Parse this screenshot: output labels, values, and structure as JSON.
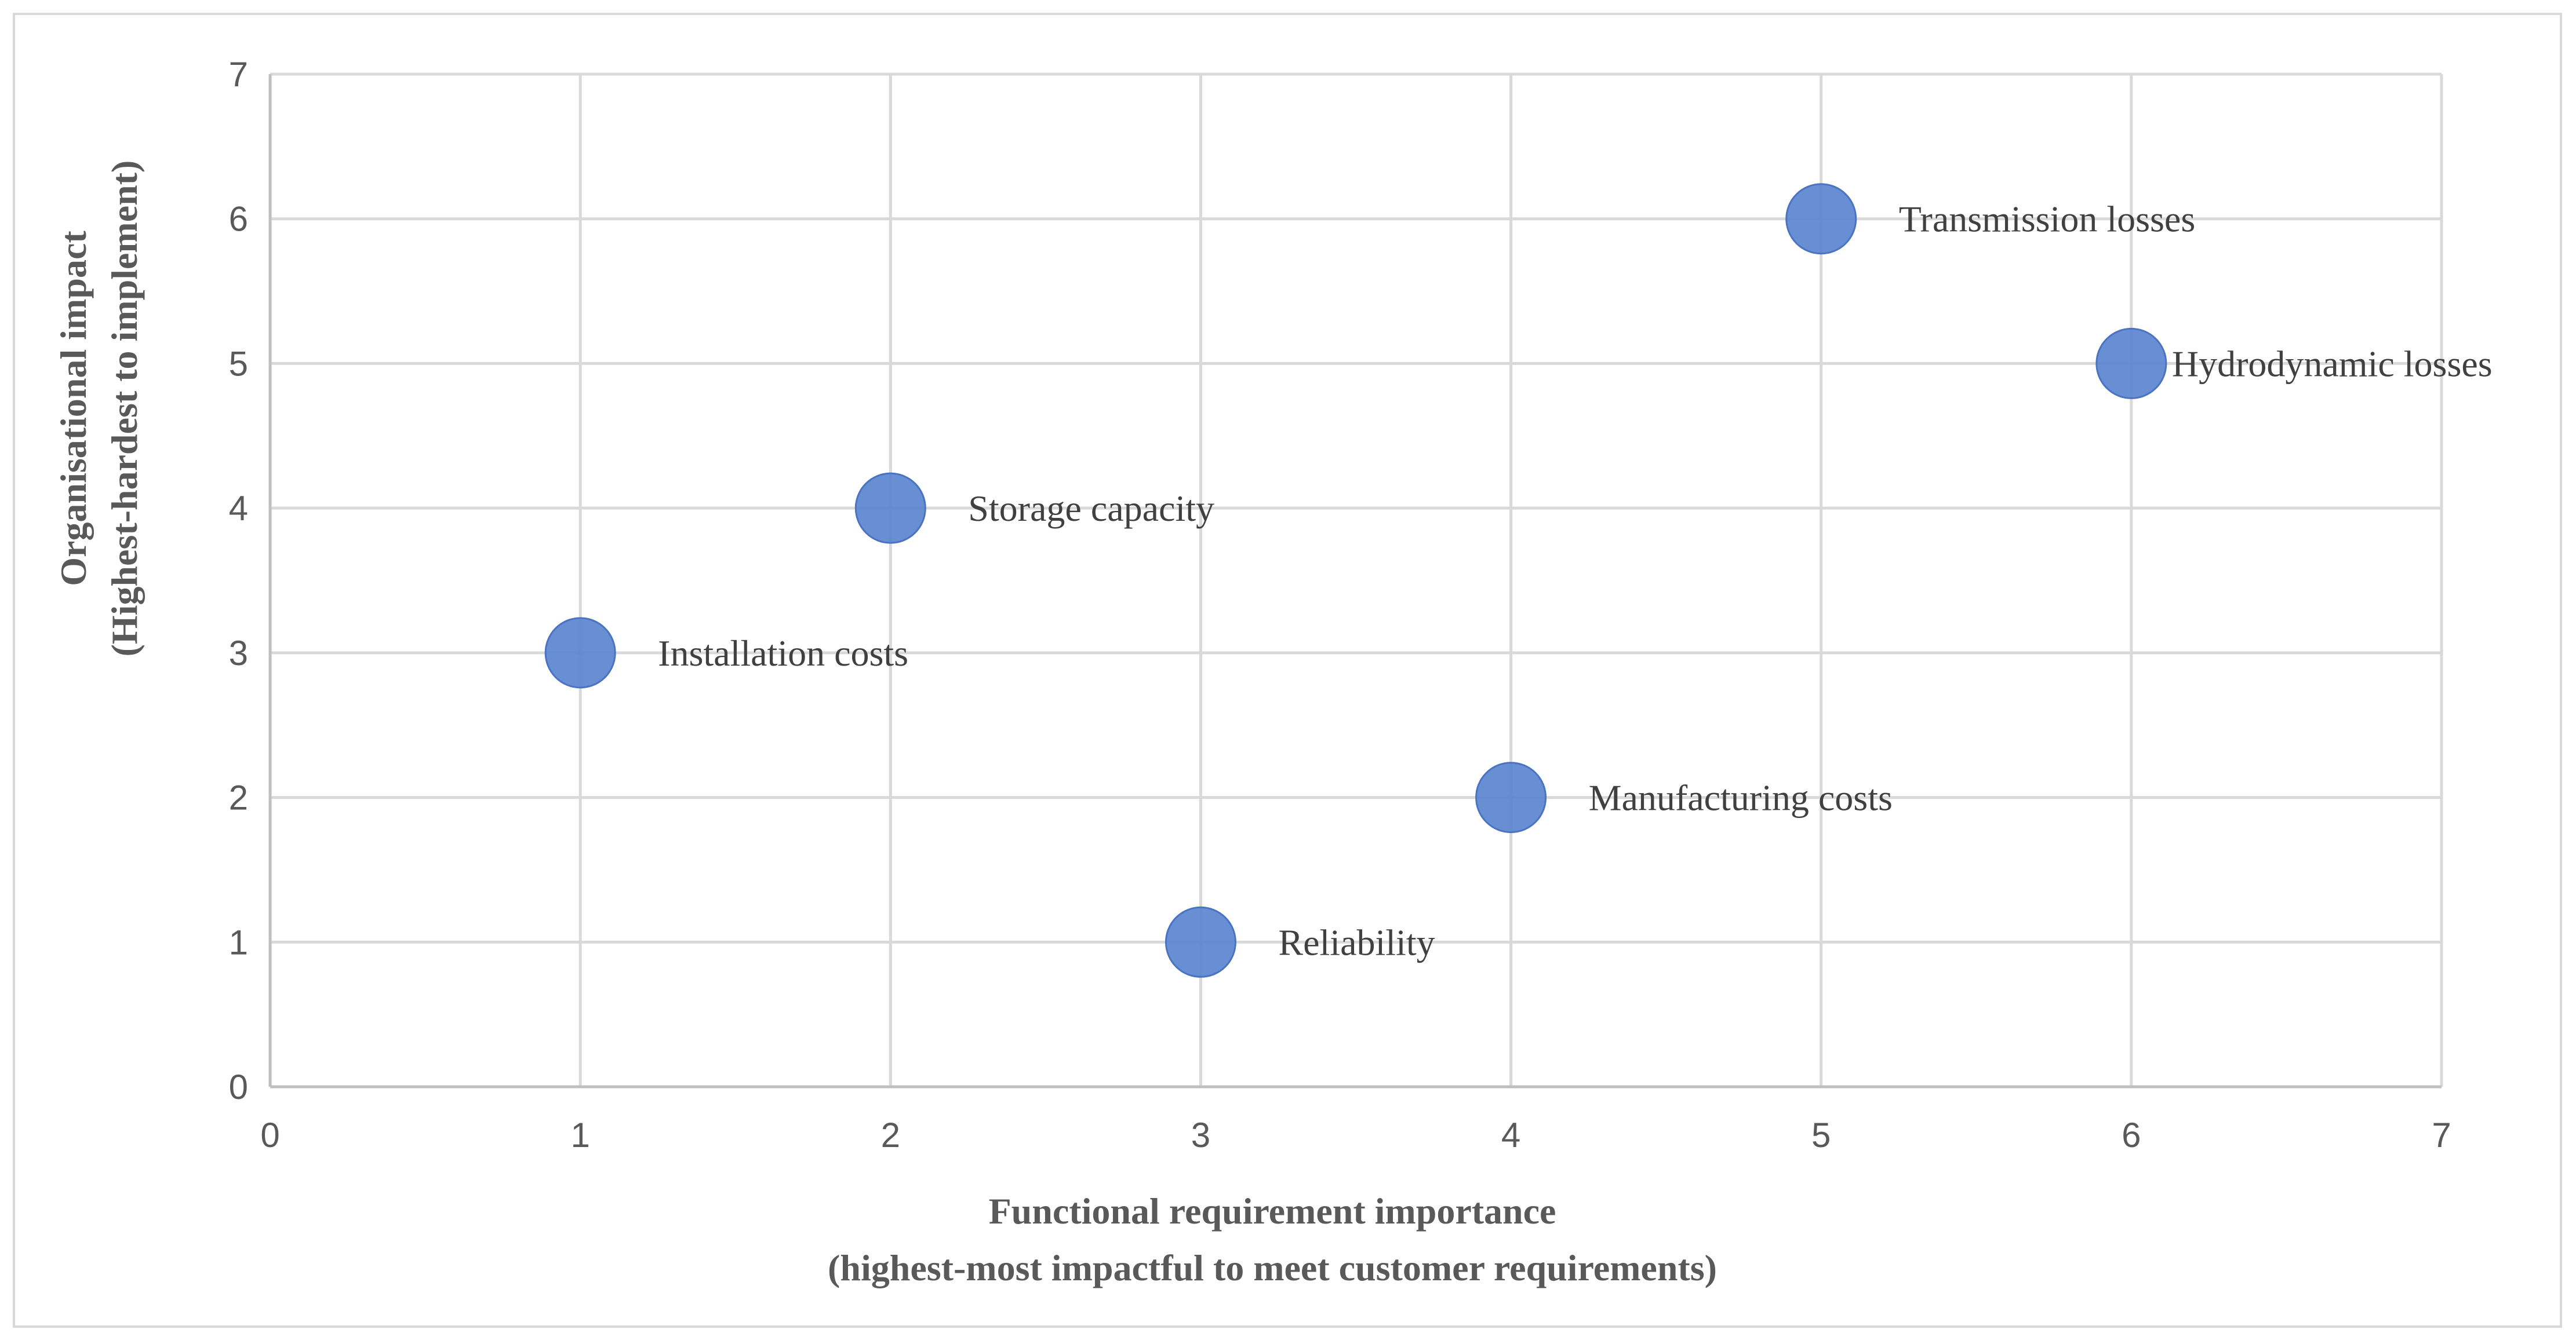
{
  "chart_data": {
    "type": "scatter",
    "title": "",
    "xlabel": [
      "Functional requirement importance",
      "(highest-most impactful to meet customer requirements)"
    ],
    "ylabel": [
      "Organisational impact",
      "(Highest-hardest to implement)"
    ],
    "xlim": [
      0,
      7
    ],
    "ylim": [
      0,
      7
    ],
    "xticks": [
      "0",
      "1",
      "2",
      "3",
      "4",
      "5",
      "6",
      "7"
    ],
    "yticks": [
      "0",
      "1",
      "2",
      "3",
      "4",
      "5",
      "6",
      "7"
    ],
    "grid": true,
    "legend": "none",
    "marker_color": "#5b84d0",
    "points": [
      {
        "x": 1,
        "y": 3,
        "label": "Installation costs"
      },
      {
        "x": 2,
        "y": 4,
        "label": "Storage capacity"
      },
      {
        "x": 3,
        "y": 1,
        "label": "Reliability"
      },
      {
        "x": 4,
        "y": 2,
        "label": "Manufacturing costs"
      },
      {
        "x": 5,
        "y": 6,
        "label": "Transmission losses"
      },
      {
        "x": 6,
        "y": 5,
        "label": "Hydrodynamic losses"
      }
    ]
  }
}
